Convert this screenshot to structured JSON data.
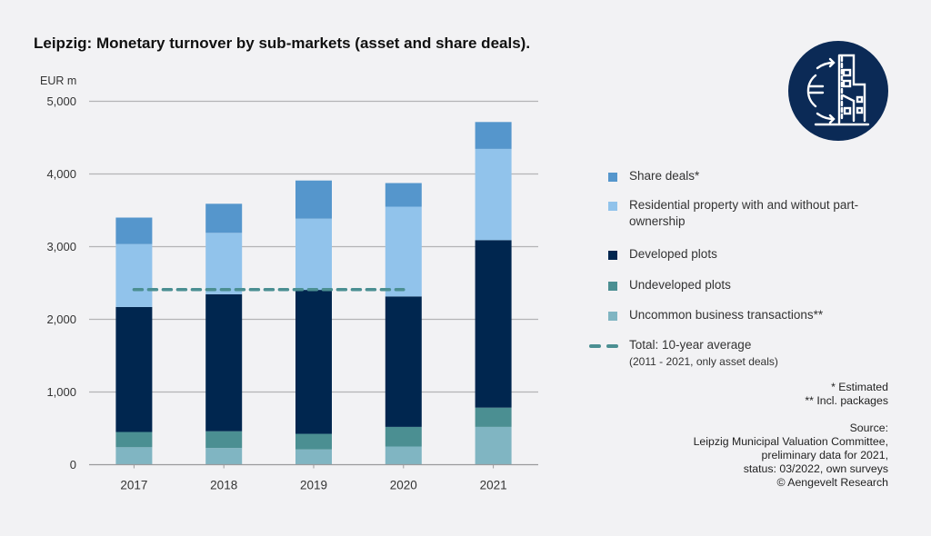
{
  "title": "Leipzig: Monetary turnover by sub-markets (asset and share deals).",
  "logo_icon": "euro-buildings-icon",
  "colors": {
    "background": "#f2f2f4",
    "share_deals": "#5596cc",
    "residential": "#91c3eb",
    "developed": "#00264f",
    "undeveloped": "#4b8f92",
    "uncommon": "#80b5c2",
    "average_line": "#4b8f92",
    "logo_bg": "#0b2a56"
  },
  "chart_data": {
    "type": "bar",
    "stacked": true,
    "title": "Leipzig: Monetary turnover by sub-markets (asset and share deals).",
    "ylabel": "EUR m",
    "xlabel": "",
    "ylim": [
      0,
      5000
    ],
    "yticks": [
      0,
      1000,
      2000,
      3000,
      4000,
      5000
    ],
    "ytick_labels": [
      "0",
      "1,000",
      "2,000",
      "3,000",
      "4,000",
      "5,000"
    ],
    "grid": true,
    "legend_position": "right",
    "categories": [
      "2017",
      "2018",
      "2019",
      "2020",
      "2021"
    ],
    "series": [
      {
        "key": "uncommon",
        "name": "Uncommon business transactions**",
        "values": [
          240,
          230,
          210,
          250,
          520
        ]
      },
      {
        "key": "undeveloped",
        "name": "Undeveloped plots",
        "values": [
          210,
          230,
          215,
          270,
          265
        ]
      },
      {
        "key": "developed",
        "name": "Developed plots",
        "values": [
          1720,
          1885,
          1980,
          1795,
          2305
        ]
      },
      {
        "key": "residential",
        "name": "Residential property with and without part-ownership",
        "values": [
          865,
          845,
          980,
          1235,
          1255
        ]
      },
      {
        "key": "share_deals",
        "name": "Share deals*",
        "values": [
          365,
          400,
          525,
          325,
          370
        ]
      }
    ],
    "totals": [
      3400,
      3590,
      3910,
      3875,
      4715
    ],
    "reference_line": {
      "name": "Total: 10-year average",
      "note": "(2011 - 2021, only asset deals)",
      "value": 2410,
      "span_categories": [
        "2017",
        "2020"
      ],
      "style": "dashed"
    }
  },
  "legend": [
    {
      "key": "share_deals",
      "label": "Share deals*"
    },
    {
      "key": "residential",
      "label": "Residential property with and without part-ownership"
    },
    {
      "key": "developed",
      "label": "Developed plots"
    },
    {
      "key": "undeveloped",
      "label": "Undeveloped plots"
    },
    {
      "key": "uncommon",
      "label": "Uncommon business transactions**"
    }
  ],
  "legend_avg": {
    "label": "Total: 10-year average",
    "sub": "(2011 - 2021, only asset deals)"
  },
  "notes": {
    "estimated": "* Estimated",
    "packages": "** Incl. packages",
    "source_label": "Source:",
    "source_lines": [
      "Leipzig Municipal Valuation Committee,",
      "preliminary data for 2021,",
      "status: 03/2022, own surveys",
      "© Aengevelt Research"
    ]
  }
}
